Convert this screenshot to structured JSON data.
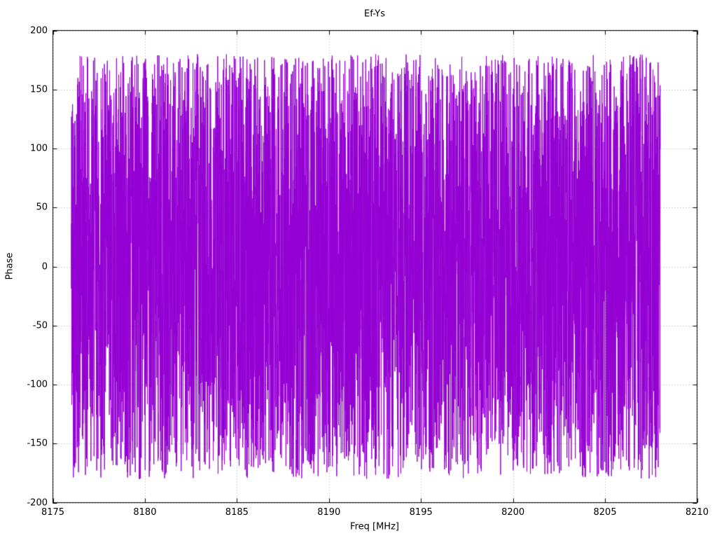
{
  "chart_data": {
    "type": "line",
    "title": "Ef-Ys",
    "xlabel": "Freq [MHz]",
    "ylabel": "Phase",
    "xlim": [
      8175,
      8210
    ],
    "ylim": [
      -200,
      200
    ],
    "x_ticks": [
      8175,
      8180,
      8185,
      8190,
      8195,
      8200,
      8205,
      8210
    ],
    "y_ticks": [
      -200,
      -150,
      -100,
      -50,
      0,
      50,
      100,
      150,
      200
    ],
    "grid": true,
    "legend": "none",
    "colors": {
      "series": "#9400d3",
      "grid": "#a6a6a6",
      "border": "#000000",
      "text": "#000000",
      "background": "#ffffff"
    },
    "series": [
      {
        "name": "Ef-Ys",
        "color": "#9400d3",
        "x_start": 8176.0,
        "x_end": 8208.0,
        "num_points": 5000,
        "value_min": -180,
        "value_max": 180,
        "seed": 42,
        "description": "Wrapped phase: dense pseudo-random values uniformly distributed between -180 and +180 degrees across the band, drawn as a connected polyline forming a solid purple noise band"
      }
    ]
  }
}
